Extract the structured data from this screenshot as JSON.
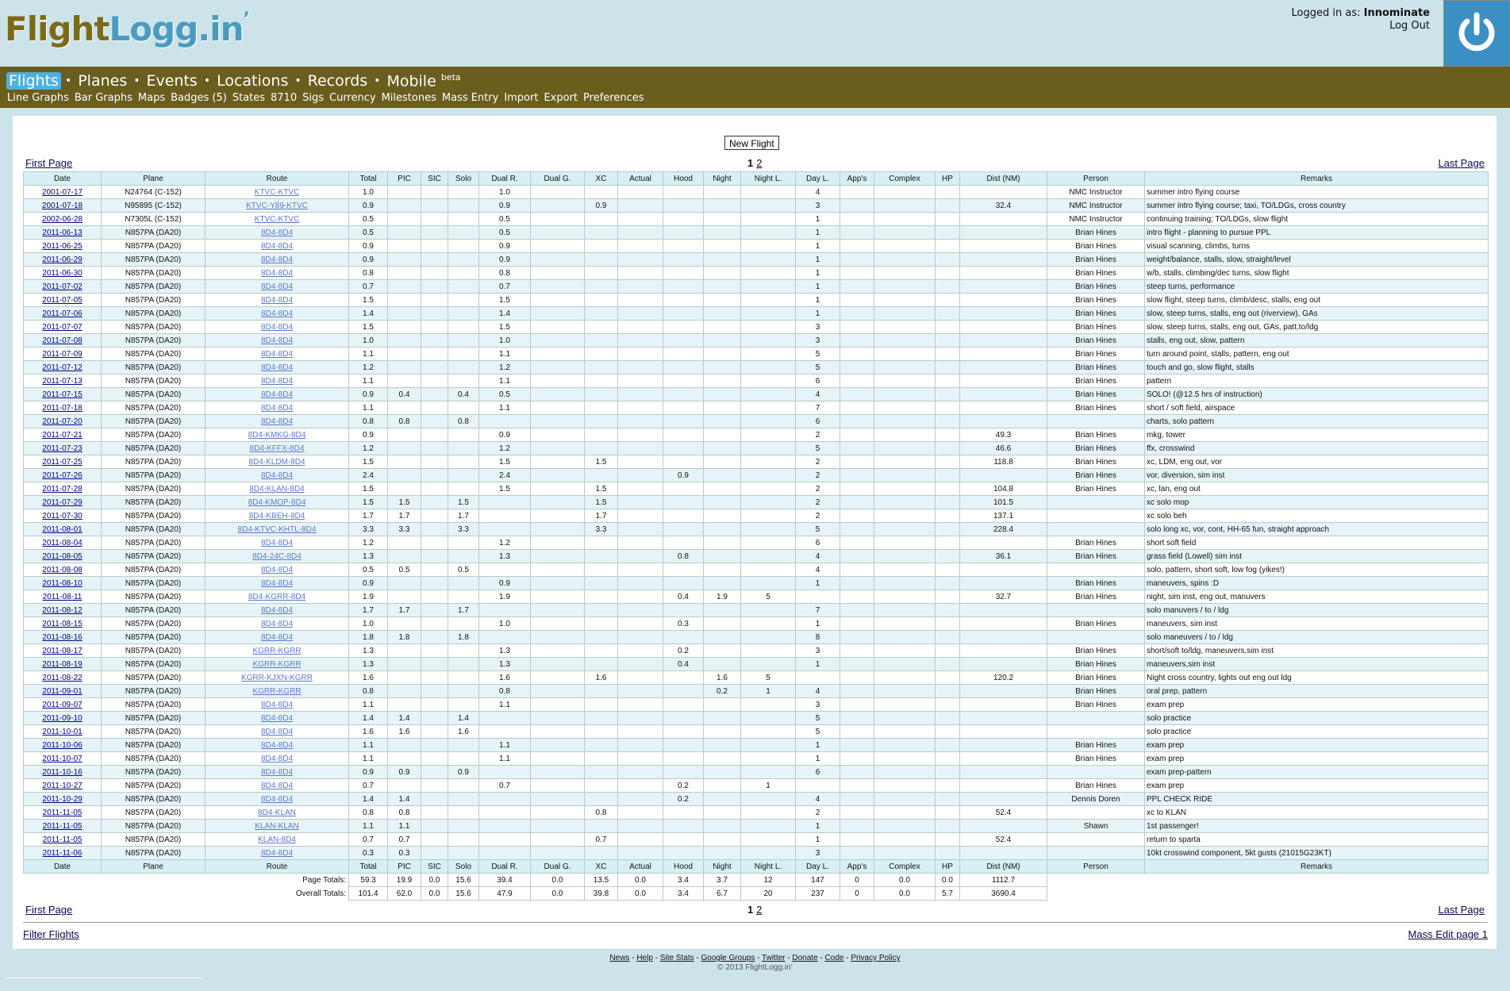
{
  "site": {
    "logo_a": "Flight",
    "logo_b": "Logg.in",
    "logo_c": "’",
    "logged_in_prefix": "Logged in as:",
    "username": "Innominate",
    "logout": "Log Out"
  },
  "nav": {
    "main": [
      "Flights",
      "Planes",
      "Events",
      "Locations",
      "Records",
      "Mobile"
    ],
    "mobile_badge": "beta",
    "sub": [
      "Line Graphs",
      "Bar Graphs",
      "Maps",
      "Badges (5)",
      "States",
      "8710",
      "Sigs",
      "Currency",
      "Milestones",
      "Mass Entry",
      "Import",
      "Export",
      "Preferences"
    ]
  },
  "new_flight": "New Flight",
  "pager": {
    "first": "First Page",
    "last": "Last Page",
    "pages": [
      "1",
      "2"
    ],
    "current": "1"
  },
  "columns": [
    "Date",
    "Plane",
    "Route",
    "Total",
    "PIC",
    "SIC",
    "Solo",
    "Dual R.",
    "Dual G.",
    "XC",
    "Actual",
    "Hood",
    "Night",
    "Night L.",
    "Day L.",
    "App's",
    "Complex",
    "HP",
    "Dist (NM)",
    "Person",
    "Remarks"
  ],
  "rows": [
    [
      "2001-07-17",
      "N24764 (C-152)",
      "KTVC-KTVC",
      "1.0",
      "",
      "",
      "",
      "1.0",
      "",
      "",
      "",
      "",
      "",
      "",
      "4",
      "",
      "",
      "",
      "",
      "NMC Instructor",
      "summer intro flying course"
    ],
    [
      "2001-07-18",
      "N95895 (C-152)",
      "KTVC-Y89-KTVC",
      "0.9",
      "",
      "",
      "",
      "0.9",
      "",
      "0.9",
      "",
      "",
      "",
      "",
      "3",
      "",
      "",
      "",
      "32.4",
      "NMC Instructor",
      "summer intro flying course; taxi, TO/LDGs, cross country"
    ],
    [
      "2002-06-28",
      "N7305L (C-152)",
      "KTVC-KTVC",
      "0.5",
      "",
      "",
      "",
      "0.5",
      "",
      "",
      "",
      "",
      "",
      "",
      "1",
      "",
      "",
      "",
      "",
      "NMC Instructor",
      "continuing training; TO/LDGs, slow flight"
    ],
    [
      "2011-06-13",
      "N857PA (DA20)",
      "8D4-8D4",
      "0.5",
      "",
      "",
      "",
      "0.5",
      "",
      "",
      "",
      "",
      "",
      "",
      "1",
      "",
      "",
      "",
      "",
      "Brian Hines",
      "intro flight - planning to pursue PPL"
    ],
    [
      "2011-06-25",
      "N857PA (DA20)",
      "8D4-8D4",
      "0.9",
      "",
      "",
      "",
      "0.9",
      "",
      "",
      "",
      "",
      "",
      "",
      "1",
      "",
      "",
      "",
      "",
      "Brian Hines",
      "visual scanning, climbs, turns"
    ],
    [
      "2011-06-29",
      "N857PA (DA20)",
      "8D4-8D4",
      "0.9",
      "",
      "",
      "",
      "0.9",
      "",
      "",
      "",
      "",
      "",
      "",
      "1",
      "",
      "",
      "",
      "",
      "Brian Hines",
      "weight/balance, stalls, slow, straight/level"
    ],
    [
      "2011-06-30",
      "N857PA (DA20)",
      "8D4-8D4",
      "0.8",
      "",
      "",
      "",
      "0.8",
      "",
      "",
      "",
      "",
      "",
      "",
      "1",
      "",
      "",
      "",
      "",
      "Brian Hines",
      "w/b, stalls, climbing/dec turns, slow flight"
    ],
    [
      "2011-07-02",
      "N857PA (DA20)",
      "8D4-8D4",
      "0.7",
      "",
      "",
      "",
      "0.7",
      "",
      "",
      "",
      "",
      "",
      "",
      "1",
      "",
      "",
      "",
      "",
      "Brian Hines",
      "steep turns, performance"
    ],
    [
      "2011-07-05",
      "N857PA (DA20)",
      "8D4-8D4",
      "1.5",
      "",
      "",
      "",
      "1.5",
      "",
      "",
      "",
      "",
      "",
      "",
      "1",
      "",
      "",
      "",
      "",
      "Brian Hines",
      "slow flight, steep turns, climb/desc, stalls, eng out"
    ],
    [
      "2011-07-06",
      "N857PA (DA20)",
      "8D4-8D4",
      "1.4",
      "",
      "",
      "",
      "1.4",
      "",
      "",
      "",
      "",
      "",
      "",
      "1",
      "",
      "",
      "",
      "",
      "Brian Hines",
      "slow, steep turns, stalls, eng out (riverview), GAs"
    ],
    [
      "2011-07-07",
      "N857PA (DA20)",
      "8D4-8D4",
      "1.5",
      "",
      "",
      "",
      "1.5",
      "",
      "",
      "",
      "",
      "",
      "",
      "3",
      "",
      "",
      "",
      "",
      "Brian Hines",
      "slow, steep turns, stalls, eng out, GAs, patt,to/ldg"
    ],
    [
      "2011-07-08",
      "N857PA (DA20)",
      "8D4-8D4",
      "1.0",
      "",
      "",
      "",
      "1.0",
      "",
      "",
      "",
      "",
      "",
      "",
      "3",
      "",
      "",
      "",
      "",
      "Brian Hines",
      "stalls, eng out, slow, pattern"
    ],
    [
      "2011-07-09",
      "N857PA (DA20)",
      "8D4-8D4",
      "1.1",
      "",
      "",
      "",
      "1.1",
      "",
      "",
      "",
      "",
      "",
      "",
      "5",
      "",
      "",
      "",
      "",
      "Brian Hines",
      "turn around point, stalls, pattern, eng out"
    ],
    [
      "2011-07-12",
      "N857PA (DA20)",
      "8D4-8D4",
      "1.2",
      "",
      "",
      "",
      "1.2",
      "",
      "",
      "",
      "",
      "",
      "",
      "5",
      "",
      "",
      "",
      "",
      "Brian Hines",
      "touch and go, slow flight, stalls"
    ],
    [
      "2011-07-13",
      "N857PA (DA20)",
      "8D4-8D4",
      "1.1",
      "",
      "",
      "",
      "1.1",
      "",
      "",
      "",
      "",
      "",
      "",
      "6",
      "",
      "",
      "",
      "",
      "Brian Hines",
      "pattern"
    ],
    [
      "2011-07-15",
      "N857PA (DA20)",
      "8D4-8D4",
      "0.9",
      "0.4",
      "",
      "0.4",
      "0.5",
      "",
      "",
      "",
      "",
      "",
      "",
      "4",
      "",
      "",
      "",
      "",
      "Brian Hines",
      "SOLO! (@12.5 hrs of instruction)"
    ],
    [
      "2011-07-18",
      "N857PA (DA20)",
      "8D4-8D4",
      "1.1",
      "",
      "",
      "",
      "1.1",
      "",
      "",
      "",
      "",
      "",
      "",
      "7",
      "",
      "",
      "",
      "",
      "Brian Hines",
      "short / soft field, airspace"
    ],
    [
      "2011-07-20",
      "N857PA (DA20)",
      "8D4-8D4",
      "0.8",
      "0.8",
      "",
      "0.8",
      "",
      "",
      "",
      "",
      "",
      "",
      "",
      "6",
      "",
      "",
      "",
      "",
      "",
      "charts, solo pattern"
    ],
    [
      "2011-07-21",
      "N857PA (DA20)",
      "8D4-KMKG-8D4",
      "0.9",
      "",
      "",
      "",
      "0.9",
      "",
      "",
      "",
      "",
      "",
      "",
      "2",
      "",
      "",
      "",
      "49.3",
      "Brian Hines",
      "mkg, tower"
    ],
    [
      "2011-07-23",
      "N857PA (DA20)",
      "8D4-KFFX-8D4",
      "1.2",
      "",
      "",
      "",
      "1.2",
      "",
      "",
      "",
      "",
      "",
      "",
      "5",
      "",
      "",
      "",
      "46.6",
      "Brian Hines",
      "ffx, crosswind"
    ],
    [
      "2011-07-25",
      "N857PA (DA20)",
      "8D4-KLDM-8D4",
      "1.5",
      "",
      "",
      "",
      "1.5",
      "",
      "1.5",
      "",
      "",
      "",
      "",
      "2",
      "",
      "",
      "",
      "118.8",
      "Brian Hines",
      "xc, LDM, eng out, vor"
    ],
    [
      "2011-07-26",
      "N857PA (DA20)",
      "8D4-8D4",
      "2.4",
      "",
      "",
      "",
      "2.4",
      "",
      "",
      "",
      "0.9",
      "",
      "",
      "2",
      "",
      "",
      "",
      "",
      "Brian Hines",
      "vor, diversion, sim inst"
    ],
    [
      "2011-07-28",
      "N857PA (DA20)",
      "8D4-KLAN-8D4",
      "1.5",
      "",
      "",
      "",
      "1.5",
      "",
      "1.5",
      "",
      "",
      "",
      "",
      "2",
      "",
      "",
      "",
      "104.8",
      "Brian Hines",
      "xc, lan, eng out"
    ],
    [
      "2011-07-29",
      "N857PA (DA20)",
      "8D4-KMOP-8D4",
      "1.5",
      "1.5",
      "",
      "1.5",
      "",
      "",
      "1.5",
      "",
      "",
      "",
      "",
      "2",
      "",
      "",
      "",
      "101.5",
      "",
      "xc solo mop"
    ],
    [
      "2011-07-30",
      "N857PA (DA20)",
      "8D4-KBEH-8D4",
      "1.7",
      "1.7",
      "",
      "1.7",
      "",
      "",
      "1.7",
      "",
      "",
      "",
      "",
      "2",
      "",
      "",
      "",
      "137.1",
      "",
      "xc solo beh"
    ],
    [
      "2011-08-01",
      "N857PA (DA20)",
      "8D4-KTVC-KHTL-8D4",
      "3.3",
      "3.3",
      "",
      "3.3",
      "",
      "",
      "3.3",
      "",
      "",
      "",
      "",
      "5",
      "",
      "",
      "",
      "228.4",
      "",
      "solo long xc, vor, cont, HH-65 fun, straight approach"
    ],
    [
      "2011-08-04",
      "N857PA (DA20)",
      "8D4-8D4",
      "1.2",
      "",
      "",
      "",
      "1.2",
      "",
      "",
      "",
      "",
      "",
      "",
      "6",
      "",
      "",
      "",
      "",
      "Brian Hines",
      "short soft field"
    ],
    [
      "2011-08-05",
      "N857PA (DA20)",
      "8D4-24C-8D4",
      "1.3",
      "",
      "",
      "",
      "1.3",
      "",
      "",
      "",
      "0.8",
      "",
      "",
      "4",
      "",
      "",
      "",
      "36.1",
      "Brian Hines",
      "grass field (Lowell) sim inst"
    ],
    [
      "2011-08-08",
      "N857PA (DA20)",
      "8D4-8D4",
      "0.5",
      "0.5",
      "",
      "0.5",
      "",
      "",
      "",
      "",
      "",
      "",
      "",
      "4",
      "",
      "",
      "",
      "",
      "",
      "solo, pattern, short soft, low fog (yikes!)"
    ],
    [
      "2011-08-10",
      "N857PA (DA20)",
      "8D4-8D4",
      "0.9",
      "",
      "",
      "",
      "0.9",
      "",
      "",
      "",
      "",
      "",
      "",
      "1",
      "",
      "",
      "",
      "",
      "Brian Hines",
      "maneuvers, spins :D"
    ],
    [
      "2011-08-11",
      "N857PA (DA20)",
      "8D4-KGRR-8D4",
      "1.9",
      "",
      "",
      "",
      "1.9",
      "",
      "",
      "",
      "0.4",
      "1.9",
      "5",
      "",
      "",
      "",
      "",
      "32.7",
      "Brian Hines",
      "night, sim inst, eng out, manuvers"
    ],
    [
      "2011-08-12",
      "N857PA (DA20)",
      "8D4-8D4",
      "1.7",
      "1.7",
      "",
      "1.7",
      "",
      "",
      "",
      "",
      "",
      "",
      "",
      "7",
      "",
      "",
      "",
      "",
      "",
      "solo manuvers / to / ldg"
    ],
    [
      "2011-08-15",
      "N857PA (DA20)",
      "8D4-8D4",
      "1.0",
      "",
      "",
      "",
      "1.0",
      "",
      "",
      "",
      "0.3",
      "",
      "",
      "1",
      "",
      "",
      "",
      "",
      "Brian Hines",
      "maneuvers, sim inst"
    ],
    [
      "2011-08-16",
      "N857PA (DA20)",
      "8D4-8D4",
      "1.8",
      "1.8",
      "",
      "1.8",
      "",
      "",
      "",
      "",
      "",
      "",
      "",
      "8",
      "",
      "",
      "",
      "",
      "",
      "solo maneuvers / to / ldg"
    ],
    [
      "2011-08-17",
      "N857PA (DA20)",
      "KGRR-KGRR",
      "1.3",
      "",
      "",
      "",
      "1.3",
      "",
      "",
      "",
      "0.2",
      "",
      "",
      "3",
      "",
      "",
      "",
      "",
      "Brian Hines",
      "short/soft to/ldg, maneuvers,sim inst"
    ],
    [
      "2011-08-19",
      "N857PA (DA20)",
      "KGRR-KGRR",
      "1.3",
      "",
      "",
      "",
      "1.3",
      "",
      "",
      "",
      "0.4",
      "",
      "",
      "1",
      "",
      "",
      "",
      "",
      "Brian Hines",
      "maneuvers,sim inst"
    ],
    [
      "2011-08-22",
      "N857PA (DA20)",
      "KGRR-KJXN-KGRR",
      "1.6",
      "",
      "",
      "",
      "1.6",
      "",
      "1.6",
      "",
      "",
      "1.6",
      "5",
      "",
      "",
      "",
      "",
      "120.2",
      "Brian Hines",
      "Night cross country, lights out eng out ldg"
    ],
    [
      "2011-09-01",
      "N857PA (DA20)",
      "KGRR-KGRR",
      "0.8",
      "",
      "",
      "",
      "0.8",
      "",
      "",
      "",
      "",
      "0.2",
      "1",
      "4",
      "",
      "",
      "",
      "",
      "Brian Hines",
      "oral prep, pattern"
    ],
    [
      "2011-09-07",
      "N857PA (DA20)",
      "8D4-8D4",
      "1.1",
      "",
      "",
      "",
      "1.1",
      "",
      "",
      "",
      "",
      "",
      "",
      "3",
      "",
      "",
      "",
      "",
      "Brian Hines",
      "exam prep"
    ],
    [
      "2011-09-10",
      "N857PA (DA20)",
      "8D4-8D4",
      "1.4",
      "1.4",
      "",
      "1.4",
      "",
      "",
      "",
      "",
      "",
      "",
      "",
      "5",
      "",
      "",
      "",
      "",
      "",
      "solo practice"
    ],
    [
      "2011-10-01",
      "N857PA (DA20)",
      "8D4-8D4",
      "1.6",
      "1.6",
      "",
      "1.6",
      "",
      "",
      "",
      "",
      "",
      "",
      "",
      "5",
      "",
      "",
      "",
      "",
      "",
      "solo practice"
    ],
    [
      "2011-10-06",
      "N857PA (DA20)",
      "8D4-8D4",
      "1.1",
      "",
      "",
      "",
      "1.1",
      "",
      "",
      "",
      "",
      "",
      "",
      "1",
      "",
      "",
      "",
      "",
      "Brian Hines",
      "exam prep"
    ],
    [
      "2011-10-07",
      "N857PA (DA20)",
      "8D4-8D4",
      "1.1",
      "",
      "",
      "",
      "1.1",
      "",
      "",
      "",
      "",
      "",
      "",
      "1",
      "",
      "",
      "",
      "",
      "Brian Hines",
      "exam prep"
    ],
    [
      "2011-10-16",
      "N857PA (DA20)",
      "8D4-8D4",
      "0.9",
      "0.9",
      "",
      "0.9",
      "",
      "",
      "",
      "",
      "",
      "",
      "",
      "6",
      "",
      "",
      "",
      "",
      "",
      "exam prep-pattern"
    ],
    [
      "2011-10-27",
      "N857PA (DA20)",
      "8D4-8D4",
      "0.7",
      "",
      "",
      "",
      "0.7",
      "",
      "",
      "",
      "0.2",
      "",
      "1",
      "",
      "",
      "",
      "",
      "",
      "Brian Hines",
      "exam prep"
    ],
    [
      "2011-10-29",
      "N857PA (DA20)",
      "8D4-8D4",
      "1.4",
      "1.4",
      "",
      "",
      "",
      "",
      "",
      "",
      "0.2",
      "",
      "",
      "4",
      "",
      "",
      "",
      "",
      "Dennis Doren",
      "PPL CHECK RIDE"
    ],
    [
      "2011-11-05",
      "N857PA (DA20)",
      "8D4-KLAN",
      "0.8",
      "0.8",
      "",
      "",
      "",
      "",
      "0.8",
      "",
      "",
      "",
      "",
      "2",
      "",
      "",
      "",
      "52.4",
      "",
      "xc to KLAN"
    ],
    [
      "2011-11-05",
      "N857PA (DA20)",
      "KLAN-KLAN",
      "1.1",
      "1.1",
      "",
      "",
      "",
      "",
      "",
      "",
      "",
      "",
      "",
      "1",
      "",
      "",
      "",
      "",
      "Shawn",
      "1st passenger!"
    ],
    [
      "2011-11-05",
      "N857PA (DA20)",
      "KLAN-8D4",
      "0.7",
      "0.7",
      "",
      "",
      "",
      "",
      "0.7",
      "",
      "",
      "",
      "",
      "1",
      "",
      "",
      "",
      "52.4",
      "",
      "return to sparta"
    ],
    [
      "2011-11-06",
      "N857PA (DA20)",
      "8D4-8D4",
      "0.3",
      "0.3",
      "",
      "",
      "",
      "",
      "",
      "",
      "",
      "",
      "",
      "3",
      "",
      "",
      "",
      "",
      "",
      "10kt crosswind component, 5kt gusts (21015G23KT)"
    ]
  ],
  "totals": {
    "page_label": "Page Totals:",
    "overall_label": "Overall Totals:",
    "page": [
      "59.3",
      "19.9",
      "0.0",
      "15.6",
      "39.4",
      "0.0",
      "13.5",
      "0.0",
      "3.4",
      "3.7",
      "12",
      "147",
      "0",
      "0.0",
      "0.0",
      "1112.7"
    ],
    "overall": [
      "101.4",
      "62.0",
      "0.0",
      "15.6",
      "47.9",
      "0.0",
      "39.8",
      "0.0",
      "3.4",
      "6.7",
      "20",
      "237",
      "0",
      "0.0",
      "5.7",
      "3690.4"
    ]
  },
  "filter": "Filter Flights",
  "mass_edit": "Mass Edit page 1",
  "footer": {
    "links": [
      "News",
      "Help",
      "Site Stats",
      "Google Groups",
      "Twitter",
      "Donate",
      "Code",
      "Privacy Policy"
    ],
    "copyright": "© 2013 FlightLogg.in’"
  }
}
